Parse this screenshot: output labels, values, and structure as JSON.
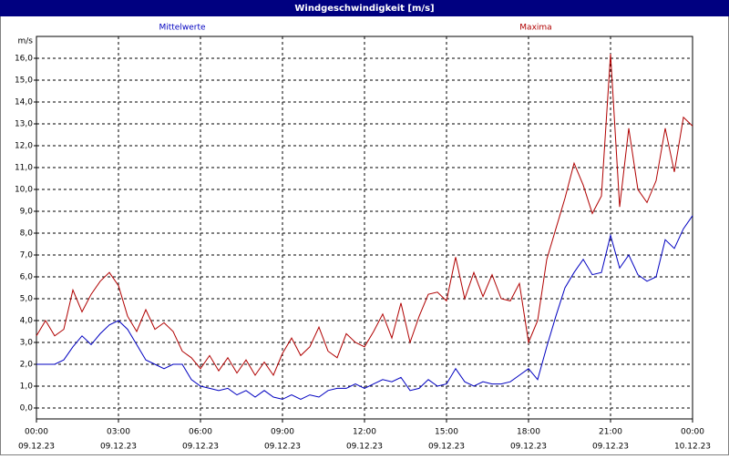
{
  "chart_data": {
    "type": "line",
    "title": "Windgeschwindigkeit [m/s]",
    "ylabel": "m/s",
    "xlim": [
      0,
      1440
    ],
    "ylim": [
      -0.5,
      17
    ],
    "grid": true,
    "xticks": [
      {
        "value": 0,
        "label": "00:00"
      },
      {
        "value": 180,
        "label": "03:00"
      },
      {
        "value": 360,
        "label": "06:00"
      },
      {
        "value": 540,
        "label": "09:00"
      },
      {
        "value": 720,
        "label": "12:00"
      },
      {
        "value": 900,
        "label": "15:00"
      },
      {
        "value": 1080,
        "label": "18:00"
      },
      {
        "value": 1260,
        "label": "21:00"
      },
      {
        "value": 1440,
        "label": "00:00"
      }
    ],
    "xtick_dates": [
      "09.12.23",
      "09.12.23",
      "09.12.23",
      "09.12.23",
      "09.12.23",
      "09.12.23",
      "09.12.23",
      "09.12.23",
      "10.12.23"
    ],
    "yticks": [
      {
        "value": 0,
        "label": "0,0"
      },
      {
        "value": 1,
        "label": "1,0"
      },
      {
        "value": 2,
        "label": "2,0"
      },
      {
        "value": 3,
        "label": "3,0"
      },
      {
        "value": 4,
        "label": "4,0"
      },
      {
        "value": 5,
        "label": "5,0"
      },
      {
        "value": 6,
        "label": "6,0"
      },
      {
        "value": 7,
        "label": "7,0"
      },
      {
        "value": 8,
        "label": "8,0"
      },
      {
        "value": 9,
        "label": "9,0"
      },
      {
        "value": 10,
        "label": "10,0"
      },
      {
        "value": 11,
        "label": "11,0"
      },
      {
        "value": 12,
        "label": "12,0"
      },
      {
        "value": 13,
        "label": "13,0"
      },
      {
        "value": 14,
        "label": "14,0"
      },
      {
        "value": 15,
        "label": "15,0"
      },
      {
        "value": 16,
        "label": "16,0"
      }
    ],
    "x": [
      0,
      20,
      40,
      60,
      80,
      100,
      120,
      140,
      160,
      180,
      200,
      220,
      240,
      260,
      280,
      300,
      320,
      340,
      360,
      380,
      400,
      420,
      440,
      460,
      480,
      500,
      520,
      540,
      560,
      580,
      600,
      620,
      640,
      660,
      680,
      700,
      720,
      740,
      760,
      780,
      800,
      820,
      840,
      860,
      880,
      900,
      920,
      940,
      960,
      980,
      1000,
      1020,
      1040,
      1060,
      1080,
      1100,
      1120,
      1140,
      1160,
      1180,
      1200,
      1220,
      1240,
      1260,
      1280,
      1300,
      1320,
      1340,
      1360,
      1380,
      1400,
      1420,
      1440
    ],
    "series": [
      {
        "name": "Mittelwerte",
        "color": "#0000c0",
        "values": [
          2.0,
          2.0,
          2.0,
          2.2,
          2.8,
          3.3,
          2.9,
          3.4,
          3.8,
          4.0,
          3.6,
          2.9,
          2.2,
          2.0,
          1.8,
          2.0,
          2.0,
          1.3,
          1.0,
          0.9,
          0.8,
          0.9,
          0.6,
          0.8,
          0.5,
          0.8,
          0.5,
          0.4,
          0.6,
          0.4,
          0.6,
          0.5,
          0.8,
          0.9,
          0.9,
          1.1,
          0.9,
          1.1,
          1.3,
          1.2,
          1.4,
          0.8,
          0.9,
          1.3,
          1.0,
          1.1,
          1.8,
          1.2,
          1.0,
          1.2,
          1.1,
          1.1,
          1.2,
          1.5,
          1.8,
          1.3,
          2.8,
          4.2,
          5.5,
          6.2,
          6.8,
          6.1,
          6.2,
          7.9,
          6.4,
          7.0,
          6.1,
          5.8,
          6.0,
          7.7,
          7.3,
          8.2,
          8.8
        ]
      },
      {
        "name": "Maxima",
        "color": "#b00000",
        "values": [
          3.3,
          4.0,
          3.3,
          3.6,
          5.4,
          4.4,
          5.2,
          5.8,
          6.2,
          5.6,
          4.2,
          3.5,
          4.5,
          3.6,
          3.9,
          3.5,
          2.6,
          2.3,
          1.8,
          2.4,
          1.7,
          2.3,
          1.6,
          2.2,
          1.5,
          2.1,
          1.5,
          2.5,
          3.2,
          2.4,
          2.8,
          3.7,
          2.6,
          2.3,
          3.4,
          3.0,
          2.8,
          3.5,
          4.3,
          3.2,
          4.8,
          3.0,
          4.2,
          5.2,
          5.3,
          4.9,
          6.9,
          5.0,
          6.2,
          5.1,
          6.1,
          5.0,
          4.9,
          5.7,
          3.0,
          4.0,
          6.8,
          8.2,
          9.6,
          11.2,
          10.2,
          8.9,
          9.7,
          16.2,
          9.2,
          12.8,
          10.0,
          9.4,
          10.4,
          12.8,
          10.8,
          13.3,
          12.9
        ]
      }
    ]
  }
}
